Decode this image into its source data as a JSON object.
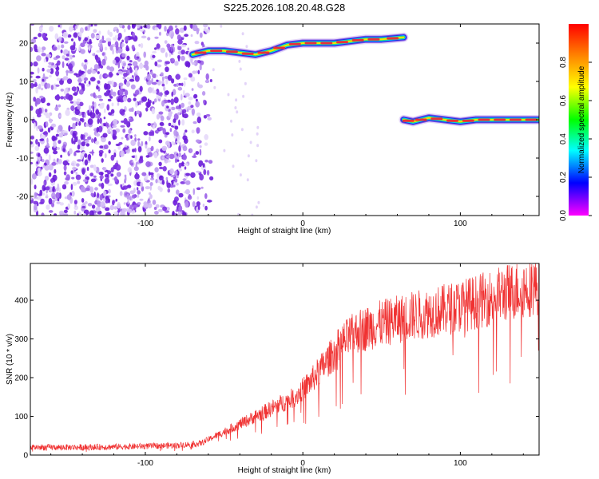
{
  "figure": {
    "title": "S225.2026.108.20.48.G28"
  },
  "chart_data": [
    {
      "type": "heatmap",
      "xlabel": "Height of straight line (km)",
      "ylabel": "Frequency (Hz)",
      "xlim": [
        -173,
        150
      ],
      "ylim": [
        -25,
        25
      ],
      "xticks": [
        -100,
        0,
        100
      ],
      "yticks": [
        -20,
        -10,
        0,
        10,
        20
      ],
      "grid": false,
      "colorbar": {
        "label": "Normalized spectral amplitude",
        "range": [
          0,
          1
        ],
        "ticks": [
          0.0,
          0.2,
          0.4,
          0.6,
          0.8
        ]
      },
      "noise_region_x": [
        -173,
        -58
      ],
      "tracks": [
        {
          "x": [
            -70,
            -60,
            -50,
            -40,
            -30,
            -20,
            -10,
            0,
            10,
            20,
            30,
            40,
            50,
            64
          ],
          "y": [
            17,
            18,
            18,
            17.5,
            17,
            18,
            19.5,
            20,
            20,
            20,
            20.5,
            21,
            21,
            21.5
          ]
        },
        {
          "x": [
            64,
            70,
            80,
            90,
            100,
            110,
            120,
            130,
            140,
            150
          ],
          "y": [
            0,
            -0.5,
            0.5,
            0,
            -0.5,
            0,
            0,
            0,
            0,
            0
          ]
        }
      ]
    },
    {
      "type": "line",
      "xlabel": "Height of straight line (km)",
      "ylabel": "SNR (10 * v/v)",
      "xlim": [
        -173,
        150
      ],
      "ylim": [
        0,
        495
      ],
      "xticks": [
        -100,
        0,
        100
      ],
      "yticks": [
        0,
        100,
        200,
        300,
        400
      ],
      "grid": false,
      "color": "#f03232",
      "series": [
        {
          "x": [
            -173,
            -140,
            -110,
            -80,
            -65,
            -55,
            -45,
            -35,
            -25,
            -15,
            -5,
            5,
            15,
            25,
            35,
            50,
            70,
            90,
            110,
            130,
            150
          ],
          "values": [
            20,
            20,
            22,
            25,
            30,
            50,
            70,
            90,
            110,
            130,
            150,
            190,
            240,
            290,
            320,
            340,
            360,
            375,
            395,
            420,
            440
          ]
        }
      ]
    }
  ]
}
